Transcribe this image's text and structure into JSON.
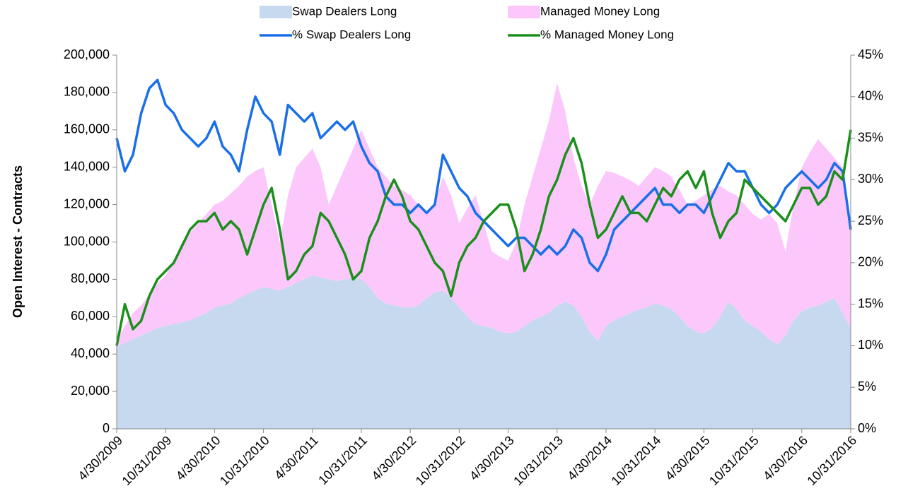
{
  "chart_data": {
    "type": "area",
    "y_label": "Open Interest - Contracts",
    "categories": [
      "4/30/2009",
      null,
      null,
      null,
      null,
      null,
      "10/31/2009",
      null,
      null,
      null,
      null,
      null,
      "4/30/2010",
      null,
      null,
      null,
      null,
      null,
      "10/31/2010",
      null,
      null,
      null,
      null,
      null,
      "4/30/2011",
      null,
      null,
      null,
      null,
      null,
      "10/31/2011",
      null,
      null,
      null,
      null,
      null,
      "4/30/2012",
      null,
      null,
      null,
      null,
      null,
      "10/31/2012",
      null,
      null,
      null,
      null,
      null,
      "4/30/2013",
      null,
      null,
      null,
      null,
      null,
      "10/31/2013",
      null,
      null,
      null,
      null,
      null,
      "4/30/2014",
      null,
      null,
      null,
      null,
      null,
      "10/31/2014",
      null,
      null,
      null,
      null,
      null,
      "4/30/2015",
      null,
      null,
      null,
      null,
      null,
      "10/31/2015",
      null,
      null,
      null,
      null,
      null,
      "4/30/2016",
      null,
      null,
      null,
      null,
      null,
      "10/31/2016"
    ],
    "series": [
      {
        "name": "Swap Dealers Long",
        "type": "area",
        "stacked": true,
        "color": "#c6d9ee",
        "values": [
          44000,
          46000,
          48000,
          50000,
          52000,
          54000,
          55000,
          56000,
          57000,
          58000,
          60000,
          62000,
          65000,
          66000,
          67000,
          70000,
          72000,
          74000,
          76000,
          75000,
          74000,
          76000,
          78000,
          80000,
          82000,
          81000,
          80000,
          79000,
          80000,
          81000,
          80000,
          76000,
          70000,
          67000,
          66000,
          65000,
          65000,
          66000,
          70000,
          73000,
          74000,
          70000,
          65000,
          60000,
          56000,
          55000,
          54000,
          52000,
          51000,
          52000,
          55000,
          58000,
          60000,
          62000,
          66000,
          68000,
          66000,
          60000,
          52000,
          47000,
          55000,
          58000,
          60000,
          62000,
          64000,
          65000,
          67000,
          66000,
          64000,
          60000,
          55000,
          52000,
          51000,
          54000,
          60000,
          68000,
          64000,
          58000,
          55000,
          52000,
          48000,
          45000,
          50000,
          58000,
          63000,
          65000,
          66000,
          68000,
          70000,
          62000,
          54000
        ]
      },
      {
        "name": "Managed Money Long",
        "type": "area",
        "stacked": true,
        "color": "#fcc8fc",
        "values": [
          4000,
          9000,
          14000,
          16000,
          20000,
          24000,
          27000,
          34000,
          43000,
          47000,
          50000,
          53000,
          55000,
          56000,
          59000,
          60000,
          63000,
          64000,
          64000,
          45000,
          26000,
          49000,
          62000,
          65000,
          68000,
          59000,
          40000,
          51000,
          60000,
          69000,
          80000,
          74000,
          70000,
          68000,
          64000,
          63000,
          60000,
          54000,
          45000,
          47000,
          61000,
          55000,
          45000,
          58000,
          69000,
          55000,
          41000,
          40000,
          39000,
          48000,
          65000,
          77000,
          90000,
          103000,
          119000,
          102000,
          79000,
          70000,
          68000,
          83000,
          83000,
          79000,
          75000,
          71000,
          66000,
          70000,
          73000,
          72000,
          71000,
          68000,
          65000,
          70000,
          74000,
          74000,
          70000,
          59000,
          61000,
          62000,
          60000,
          60000,
          67000,
          65000,
          45000,
          62000,
          77000,
          83000,
          89000,
          82000,
          75000,
          78000,
          51000
        ]
      },
      {
        "name": "% Swap Dealers Long",
        "type": "line",
        "axis": "y2",
        "color": "#1a6fe8",
        "values": [
          35,
          31,
          33,
          38,
          41,
          42,
          39,
          38,
          36,
          35,
          34,
          35,
          37,
          34,
          33,
          31,
          36,
          40,
          38,
          37,
          33,
          39,
          38,
          37,
          38,
          35,
          36,
          37,
          36,
          37,
          34,
          32,
          31,
          28,
          27,
          27,
          26,
          27,
          26,
          27,
          33,
          31,
          29,
          28,
          26,
          25,
          24,
          23,
          22,
          23,
          23,
          22,
          21,
          22,
          21,
          22,
          24,
          23,
          20,
          19,
          21,
          24,
          25,
          26,
          27,
          28,
          29,
          27,
          27,
          26,
          27,
          27,
          26,
          28,
          30,
          32,
          31,
          31,
          29,
          27,
          26,
          27,
          29,
          30,
          31,
          30,
          29,
          30,
          32,
          31,
          24
        ]
      },
      {
        "name": "% Managed Money Long",
        "type": "line",
        "axis": "y2",
        "color": "#1b8f1b",
        "values": [
          10,
          15,
          12,
          13,
          16,
          18,
          19,
          20,
          22,
          24,
          25,
          25,
          26,
          24,
          25,
          24,
          21,
          24,
          27,
          29,
          24,
          18,
          19,
          21,
          22,
          26,
          25,
          23,
          21,
          18,
          19,
          23,
          25,
          28,
          30,
          28,
          25,
          24,
          22,
          20,
          19,
          16,
          20,
          22,
          23,
          25,
          26,
          27,
          27,
          24,
          19,
          21,
          24,
          28,
          30,
          33,
          35,
          32,
          27,
          23,
          24,
          26,
          28,
          26,
          26,
          25,
          27,
          29,
          28,
          30,
          31,
          29,
          31,
          26,
          23,
          25,
          26,
          30,
          29,
          28,
          27,
          26,
          25,
          27,
          29,
          29,
          27,
          28,
          31,
          30,
          36
        ]
      }
    ],
    "ylim": [
      0,
      200000
    ],
    "yticks": [
      0,
      {
        "value": 20000,
        "label": "20,000"
      },
      {
        "value": 40000,
        "label": "40,000"
      },
      {
        "value": 60000,
        "label": "60,000"
      },
      {
        "value": 80000,
        "label": "80,000"
      },
      {
        "value": 100000,
        "label": "100,000"
      },
      {
        "value": 120000,
        "label": "120,000"
      },
      {
        "value": 140000,
        "label": "140,000"
      },
      {
        "value": 160000,
        "label": "160,000"
      },
      {
        "value": 180000,
        "label": "180,000"
      },
      {
        "value": 200000,
        "label": "200,000"
      }
    ],
    "y2lim": [
      0,
      45
    ],
    "y2ticks": [
      {
        "value": 0,
        "label": "0%"
      },
      {
        "value": 5,
        "label": "5%"
      },
      {
        "value": 10,
        "label": "10%"
      },
      {
        "value": 15,
        "label": "15%"
      },
      {
        "value": 20,
        "label": "20%"
      },
      {
        "value": 25,
        "label": "25%"
      },
      {
        "value": 30,
        "label": "30%"
      },
      {
        "value": 35,
        "label": "35%"
      },
      {
        "value": 40,
        "label": "40%"
      },
      {
        "value": 45,
        "label": "45%"
      }
    ],
    "grid": false,
    "legend": "top"
  }
}
